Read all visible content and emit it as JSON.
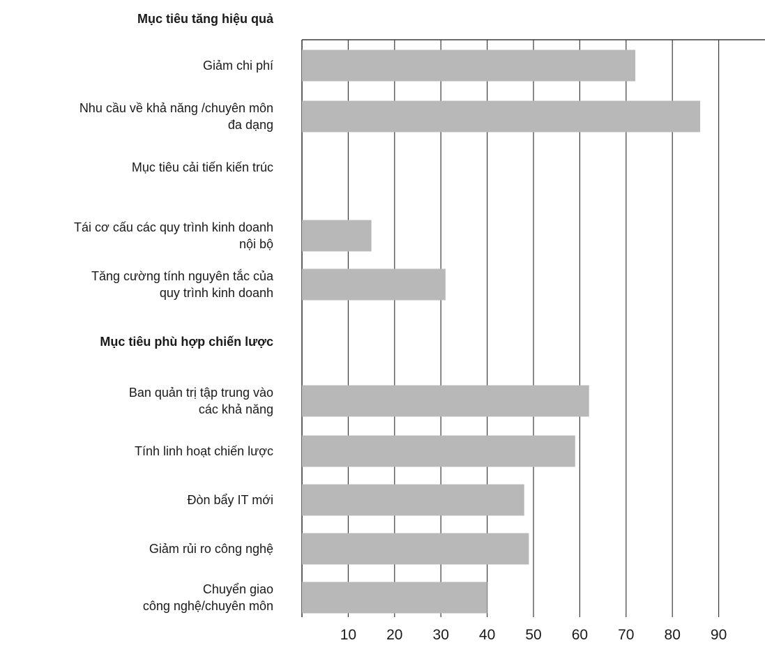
{
  "chart_data": {
    "type": "bar",
    "orientation": "horizontal",
    "grid": true,
    "xlim": [
      0,
      100
    ],
    "x_ticks": [
      "10",
      "20",
      "30",
      "40",
      "50",
      "60",
      "70",
      "80",
      "90"
    ],
    "groups": [
      {
        "heading": "Mục tiêu tăng hiệu quả",
        "items": [
          {
            "label": [
              "Giảm chi phí"
            ],
            "value": 72
          },
          {
            "label": [
              "Nhu cầu về khả năng /chuyên môn",
              "đa dạng"
            ],
            "value": 86
          },
          {
            "label": [
              "Mục tiêu cải tiến kiến trúc"
            ],
            "value": null
          },
          {
            "label": [
              "Tái cơ cấu các quy trình kinh doanh",
              "nội bộ"
            ],
            "value": 15
          },
          {
            "label": [
              "Tăng cường tính nguyên tắc của",
              "quy trình kinh doanh"
            ],
            "value": 31
          }
        ]
      },
      {
        "heading": "Mục tiêu phù hợp chiến lược",
        "items": [
          {
            "label": [
              "Ban quản trị tập trung vào",
              "các khả năng"
            ],
            "value": 62
          },
          {
            "label": [
              "Tính linh hoạt chiến lược"
            ],
            "value": 59
          },
          {
            "label": [
              "Đòn bẩy  IT mới"
            ],
            "value": 48
          },
          {
            "label": [
              "Giảm rủi ro công nghệ"
            ],
            "value": 49
          },
          {
            "label": [
              "Chuyển giao",
              "công nghệ/chuyên môn"
            ],
            "value": 40
          }
        ]
      }
    ]
  },
  "colors": {
    "bar": "#b8b8b8",
    "grid": "#3a3a3a",
    "text": "#1a1a1a"
  }
}
